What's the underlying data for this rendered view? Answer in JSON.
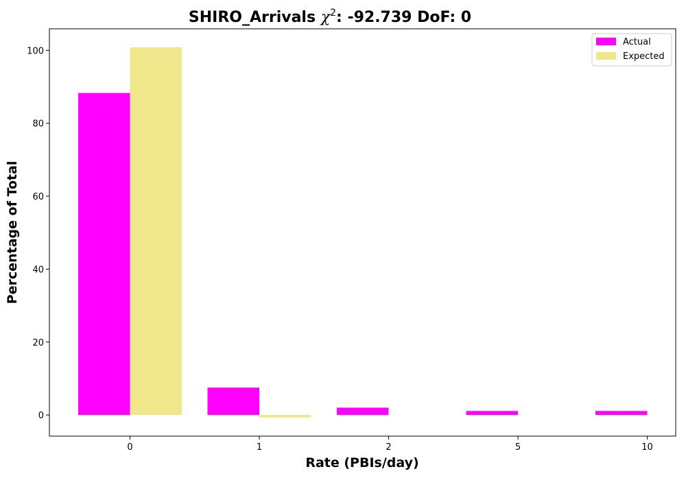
{
  "chart_data": {
    "type": "bar",
    "title_prefix": "SHIRO_Arrivals ",
    "title_chi": "χ",
    "title_sup": "2",
    "title_suffix": ": -92.739 DoF: 0",
    "xlabel": "Rate (PBIs/day)",
    "ylabel": "Percentage of Total",
    "categories": [
      "0",
      "1",
      "2",
      "5",
      "10"
    ],
    "series": [
      {
        "name": "Actual",
        "color": "#ff00ff",
        "values": [
          88.3,
          7.5,
          2.0,
          1.1,
          1.1
        ]
      },
      {
        "name": "Expected",
        "color": "#f0e68c",
        "values": [
          100.8,
          -0.7,
          0,
          0,
          0
        ]
      }
    ],
    "ylim": [
      -5.8,
      105.9
    ],
    "yticks": [
      0,
      20,
      40,
      60,
      80,
      100
    ],
    "legend_position": "top-right"
  }
}
